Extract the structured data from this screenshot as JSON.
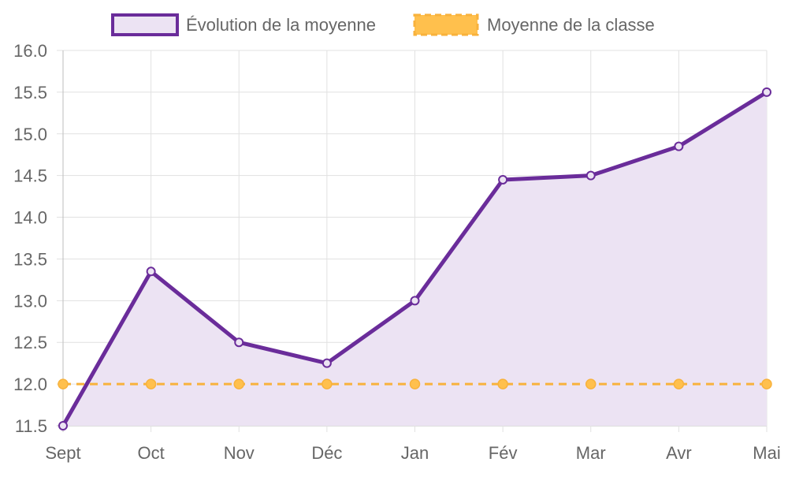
{
  "chart_data": {
    "type": "line",
    "categories": [
      "Sept",
      "Oct",
      "Nov",
      "Déc",
      "Jan",
      "Fév",
      "Mar",
      "Avr",
      "Mai"
    ],
    "series": [
      {
        "name": "Évolution de la moyenne",
        "values": [
          11.5,
          13.35,
          12.5,
          12.25,
          13.0,
          14.45,
          14.5,
          14.85,
          15.5
        ],
        "color": "#6a2c9a",
        "fill": "#ece3f3",
        "style": "solid",
        "filled": true
      },
      {
        "name": "Moyenne de la classe",
        "values": [
          12.0,
          12.0,
          12.0,
          12.0,
          12.0,
          12.0,
          12.0,
          12.0,
          12.0
        ],
        "color": "#f8b23c",
        "fill": "#ffc04d",
        "style": "dashed",
        "filled": false
      }
    ],
    "y_ticks": [
      "11.5",
      "12.0",
      "12.5",
      "13.0",
      "13.5",
      "14.0",
      "14.5",
      "15.0",
      "15.5",
      "16.0"
    ],
    "ylim": [
      11.5,
      16.0
    ],
    "grid": true,
    "legend": "top-center"
  }
}
